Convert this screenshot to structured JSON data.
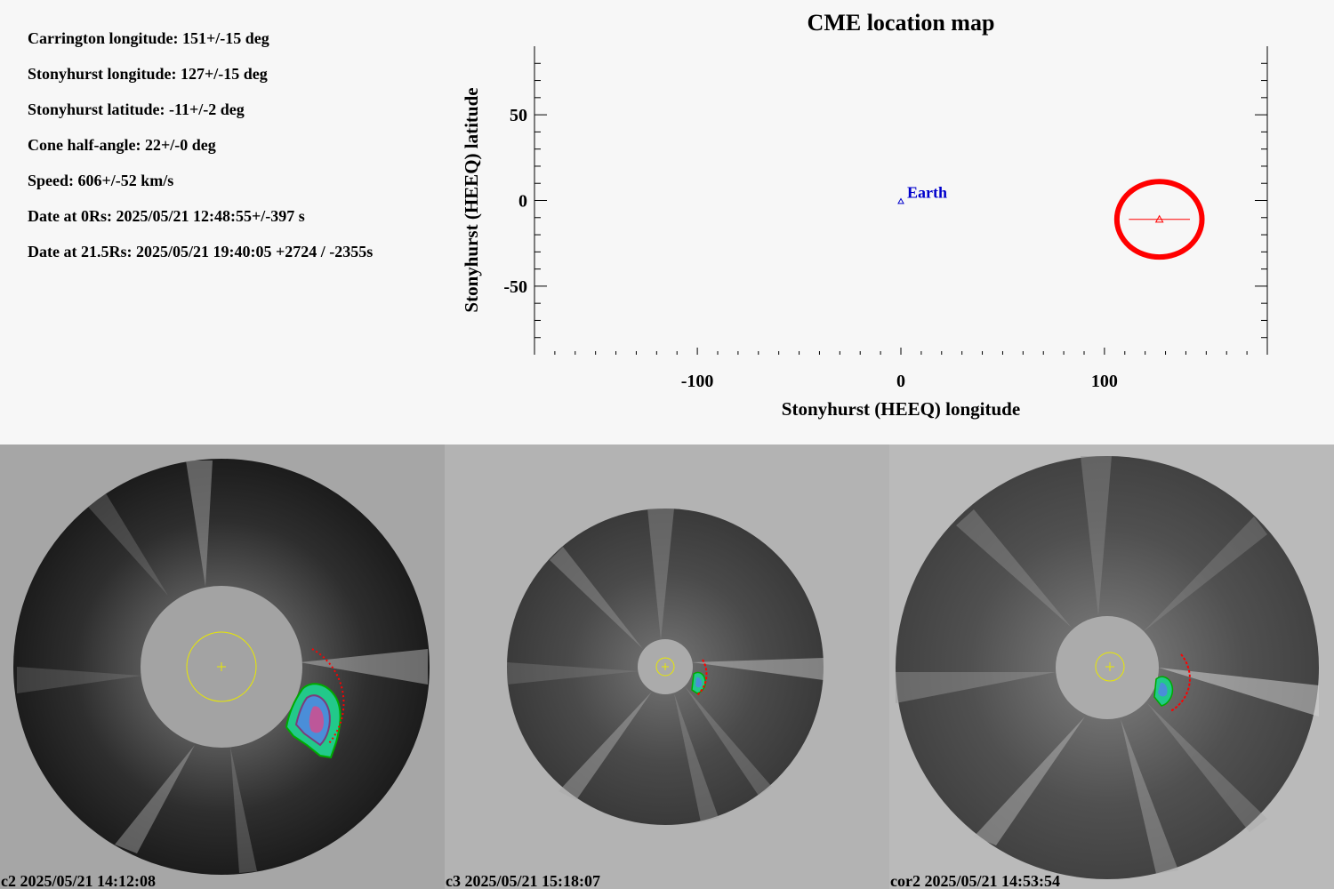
{
  "params": [
    "Carrington longitude: 151+/-15 deg",
    "Stonyhurst longitude: 127+/-15 deg",
    "Stonyhurst latitude: -11+/-2 deg",
    "Cone half-angle: 22+/-0 deg",
    "Speed: 606+/-52 km/s",
    "Date at 0Rs: 2025/05/21 12:48:55+/-397 s",
    "Date at 21.5Rs: 2025/05/21 19:40:05 +2724 / -2355s"
  ],
  "chart_data": {
    "type": "scatter",
    "title": "CME location map",
    "xlabel": "Stonyhurst (HEEQ) longitude",
    "ylabel": "Stonyhurst (HEEQ) latitude",
    "xlim": [
      -180,
      180
    ],
    "ylim": [
      -90,
      90
    ],
    "xticks": [
      -100,
      0,
      100
    ],
    "yticks": [
      50,
      0,
      -50
    ],
    "grid": false,
    "points": [
      {
        "name": "Earth",
        "x": 0,
        "y": 0,
        "color": "#0000cc",
        "marker": "triangle"
      },
      {
        "name": "",
        "x": 127,
        "y": -11,
        "color": "#ff0000",
        "marker": "triangle",
        "x_err": 15,
        "y_err": 2,
        "cone_half_angle": 22
      }
    ]
  },
  "panels": [
    {
      "id": "c2",
      "caption": "c2 2025/05/21 14:12:08",
      "background": "#a6a6a6"
    },
    {
      "id": "c3",
      "caption": "c3 2025/05/21 15:18:07",
      "background": "#b3b3b3"
    },
    {
      "id": "cor2",
      "caption": "cor2 2025/05/21 14:53:54",
      "background": "#bababa"
    }
  ],
  "colors": {
    "sun_circle": "#e8e800",
    "cme_front": "#ff0000",
    "earth": "#0000cc"
  }
}
